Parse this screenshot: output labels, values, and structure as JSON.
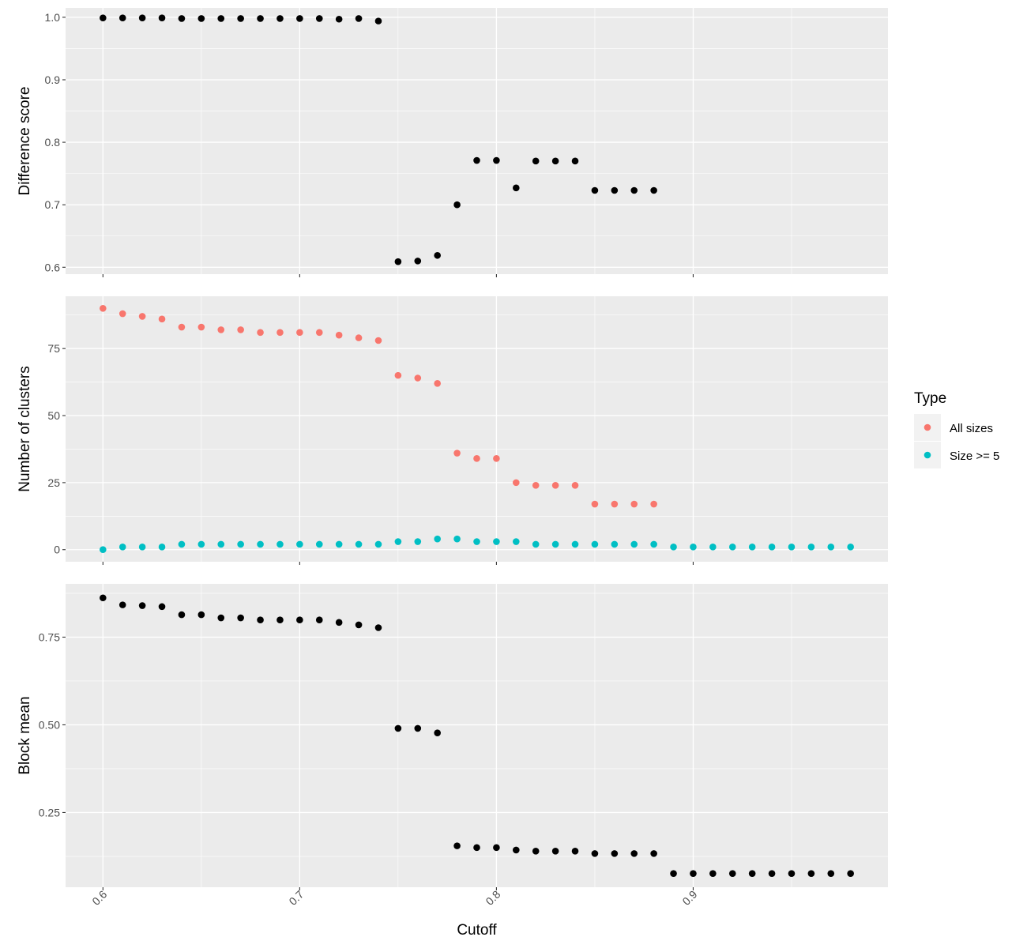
{
  "chart_data": {
    "type": "scatter",
    "xlabel": "Cutoff",
    "x_ticks": [
      0.6,
      0.7,
      0.8,
      0.9
    ],
    "x_tick_labels": [
      "0.6",
      "0.7",
      "0.8",
      "0.9"
    ],
    "xlim": [
      0.581,
      0.999
    ],
    "grid": true,
    "legend": {
      "title": "Type",
      "placement": "right",
      "entries": [
        {
          "name": "All sizes",
          "color": "#F8766D"
        },
        {
          "name": "Size >= 5",
          "color": "#00BFC4"
        }
      ]
    },
    "panels": [
      {
        "ylabel": "Difference score",
        "ylim": [
          0.589,
          1.015
        ],
        "y_ticks": [
          0.6,
          0.7,
          0.8,
          0.9,
          1.0
        ],
        "y_tick_labels": [
          "0.6",
          "0.7",
          "0.8",
          "0.9",
          "1.0"
        ],
        "series": [
          {
            "color": "#000000",
            "x": [
              0.6,
              0.61,
              0.62,
              0.63,
              0.64,
              0.65,
              0.66,
              0.67,
              0.68,
              0.69,
              0.7,
              0.71,
              0.72,
              0.73,
              0.74,
              0.75,
              0.76,
              0.77,
              0.78,
              0.79,
              0.8,
              0.81,
              0.82,
              0.83,
              0.84,
              0.85,
              0.86,
              0.87,
              0.88
            ],
            "y": [
              0.999,
              0.999,
              0.999,
              0.999,
              0.998,
              0.998,
              0.998,
              0.998,
              0.998,
              0.998,
              0.998,
              0.998,
              0.997,
              0.998,
              0.994,
              0.609,
              0.61,
              0.619,
              0.7,
              0.771,
              0.771,
              0.727,
              0.77,
              0.77,
              0.77,
              0.723,
              0.723,
              0.723,
              0.723
            ]
          }
        ]
      },
      {
        "ylabel": "Number of clusters",
        "ylim": [
          -4.5,
          94.5
        ],
        "y_ticks": [
          0,
          25,
          50,
          75
        ],
        "y_tick_labels": [
          "0",
          "25",
          "50",
          "75"
        ],
        "series": [
          {
            "name": "All sizes",
            "color": "#F8766D",
            "x": [
              0.6,
              0.61,
              0.62,
              0.63,
              0.64,
              0.65,
              0.66,
              0.67,
              0.68,
              0.69,
              0.7,
              0.71,
              0.72,
              0.73,
              0.74,
              0.75,
              0.76,
              0.77,
              0.78,
              0.79,
              0.8,
              0.81,
              0.82,
              0.83,
              0.84,
              0.85,
              0.86,
              0.87,
              0.88
            ],
            "y": [
              90,
              88,
              87,
              86,
              83,
              83,
              82,
              82,
              81,
              81,
              81,
              81,
              80,
              79,
              78,
              65,
              64,
              62,
              36,
              34,
              34,
              25,
              24,
              24,
              24,
              17,
              17,
              17,
              17
            ]
          },
          {
            "name": "Size >= 5",
            "color": "#00BFC4",
            "x": [
              0.6,
              0.61,
              0.62,
              0.63,
              0.64,
              0.65,
              0.66,
              0.67,
              0.68,
              0.69,
              0.7,
              0.71,
              0.72,
              0.73,
              0.74,
              0.75,
              0.76,
              0.77,
              0.78,
              0.79,
              0.8,
              0.81,
              0.82,
              0.83,
              0.84,
              0.85,
              0.86,
              0.87,
              0.88,
              0.89,
              0.9,
              0.91,
              0.92,
              0.93,
              0.94,
              0.95,
              0.96,
              0.97,
              0.98
            ],
            "y": [
              0,
              1,
              1,
              1,
              2,
              2,
              2,
              2,
              2,
              2,
              2,
              2,
              2,
              2,
              2,
              3,
              3,
              4,
              4,
              3,
              3,
              3,
              2,
              2,
              2,
              2,
              2,
              2,
              2,
              1,
              1,
              1,
              1,
              1,
              1,
              1,
              1,
              1,
              1
            ]
          }
        ]
      },
      {
        "ylabel": "Block mean",
        "ylim": [
          0.037,
          0.902
        ],
        "y_ticks": [
          0.25,
          0.5,
          0.75
        ],
        "y_tick_labels": [
          "0.25",
          "0.50",
          "0.75"
        ],
        "series": [
          {
            "color": "#000000",
            "x": [
              0.6,
              0.61,
              0.62,
              0.63,
              0.64,
              0.65,
              0.66,
              0.67,
              0.68,
              0.69,
              0.7,
              0.71,
              0.72,
              0.73,
              0.74,
              0.75,
              0.76,
              0.77,
              0.78,
              0.79,
              0.8,
              0.81,
              0.82,
              0.83,
              0.84,
              0.85,
              0.86,
              0.87,
              0.88,
              0.89,
              0.9,
              0.91,
              0.92,
              0.93,
              0.94,
              0.95,
              0.96,
              0.97,
              0.98
            ],
            "y": [
              0.862,
              0.842,
              0.84,
              0.837,
              0.814,
              0.814,
              0.805,
              0.805,
              0.799,
              0.799,
              0.799,
              0.799,
              0.792,
              0.785,
              0.777,
              0.49,
              0.49,
              0.477,
              0.155,
              0.15,
              0.15,
              0.143,
              0.14,
              0.14,
              0.14,
              0.133,
              0.133,
              0.133,
              0.133,
              0.076,
              0.076,
              0.076,
              0.076,
              0.076,
              0.076,
              0.076,
              0.076,
              0.076,
              0.076
            ]
          }
        ]
      }
    ]
  }
}
